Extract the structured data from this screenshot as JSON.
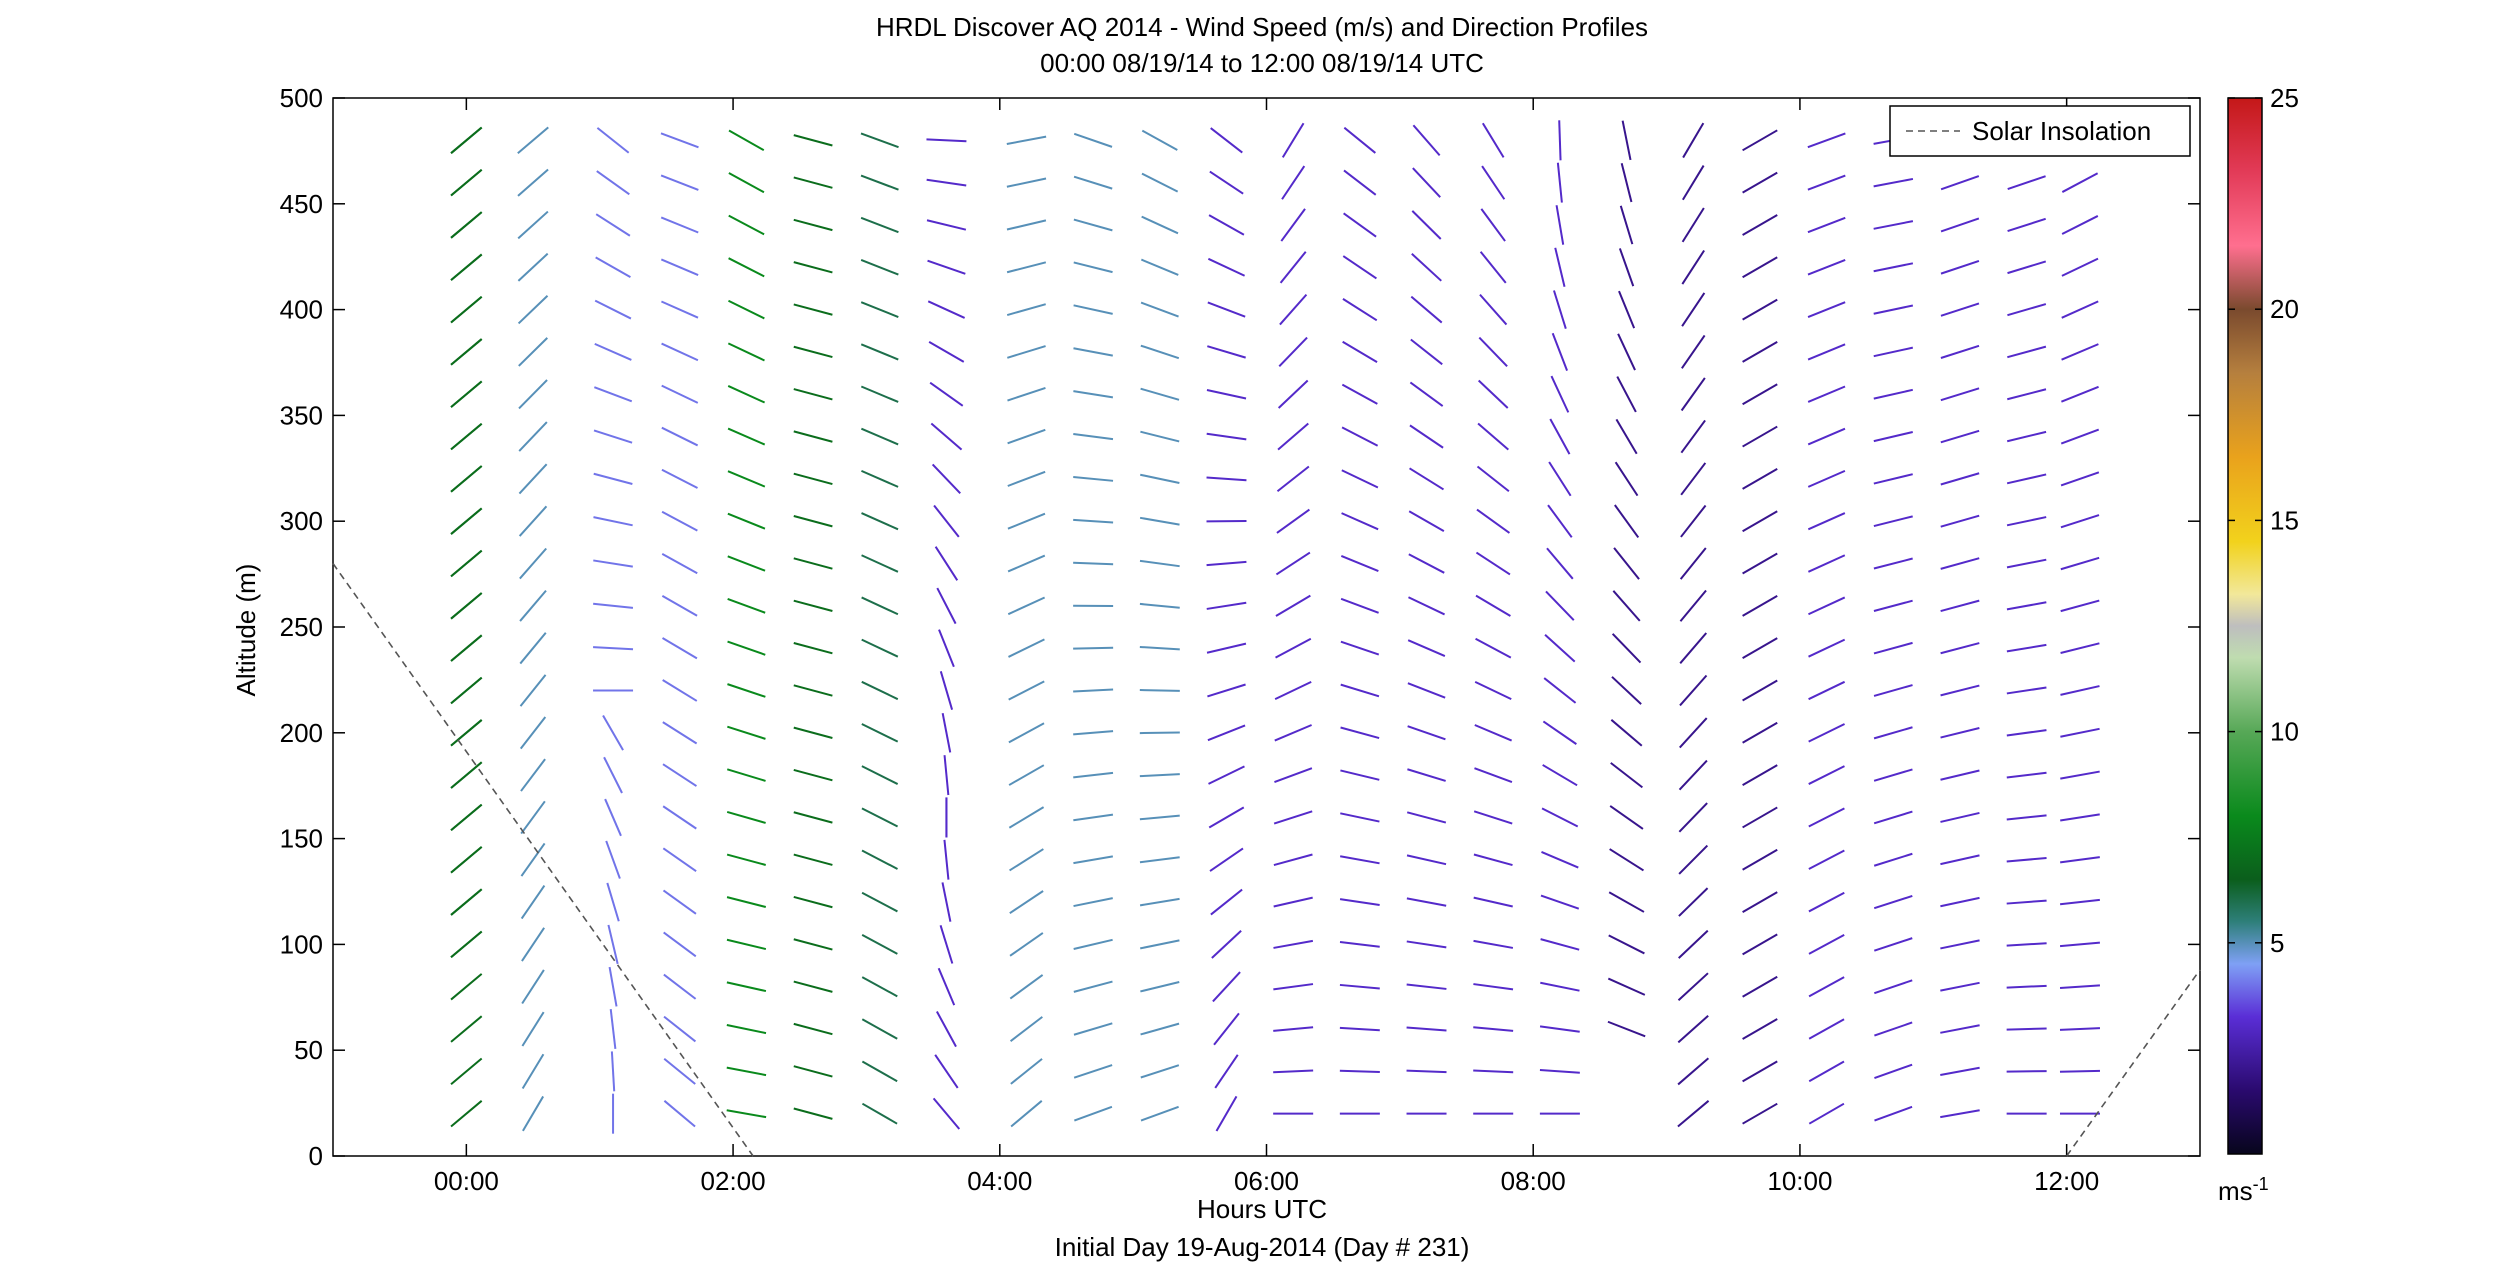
{
  "chart_data": {
    "type": "vector-field",
    "title": "HRDL Discover AQ 2014 - Wind Speed (m/s) and Direction Profiles",
    "subtitle": "00:00 08/19/14 to 12:00 08/19/14  UTC",
    "xlabel": "Hours UTC",
    "xlabel2": "Initial Day 19-Aug-2014 (Day # 231)",
    "ylabel": "Altitude (m)",
    "xlim": [
      -1.0,
      13.0
    ],
    "ylim": [
      0,
      500
    ],
    "xticks": [
      0,
      2,
      4,
      6,
      8,
      10,
      12
    ],
    "xtick_labels": [
      "00:00",
      "02:00",
      "04:00",
      "06:00",
      "08:00",
      "10:00",
      "12:00"
    ],
    "yticks": [
      0,
      50,
      100,
      150,
      200,
      250,
      300,
      350,
      400,
      450,
      500
    ],
    "ytick_labels": [
      "0",
      "50",
      "100",
      "150",
      "200",
      "250",
      "300",
      "350",
      "400",
      "450",
      "500"
    ],
    "legend": {
      "position": "top-right",
      "entries": [
        {
          "label": "Solar Insolation",
          "style": "dashed",
          "color": "#555555"
        }
      ]
    },
    "colorbar": {
      "range": [
        0,
        25
      ],
      "ticks": [
        5,
        10,
        15,
        20,
        25
      ],
      "tick_labels": [
        "5",
        "10",
        "15",
        "20",
        "25"
      ],
      "unit_label": "ms",
      "unit_exponent": "-1"
    },
    "solar_insolation": [
      {
        "x": [
          -1.0,
          2.15
        ],
        "y": [
          280,
          0
        ]
      },
      {
        "x": [
          12.0,
          13.0
        ],
        "y": [
          0,
          88
        ]
      }
    ],
    "columns": [
      {
        "x": 0.0,
        "segments": [
          [
            [
              10,
              40
            ],
            [
              490,
              40
            ]
          ],
          [
            [
              100,
              40
            ],
            [
              490,
              40
            ]
          ]
        ],
        "speed": 7
      },
      {
        "x": 0.5,
        "segments": [
          [
            [
              10,
              60
            ],
            [
              490,
              40
            ]
          ]
        ],
        "speed": 5
      },
      {
        "x": 1.1,
        "segments": [
          [
            [
              20,
              -90
            ],
            [
              200,
              -60
            ]
          ],
          [
            [
              220,
              0
            ],
            [
              490,
              -40
            ]
          ]
        ],
        "speed": 4
      },
      {
        "x": 1.6,
        "segments": [
          [
            [
              20,
              -40
            ],
            [
              490,
              -20
            ]
          ]
        ],
        "speed": 4
      },
      {
        "x": 2.1,
        "segments": [
          [
            [
              20,
              -10
            ],
            [
              490,
              -30
            ]
          ]
        ],
        "speed": 8
      },
      {
        "x": 2.6,
        "segments": [
          [
            [
              20,
              -15
            ],
            [
              490,
              -15
            ]
          ]
        ],
        "speed": 7
      },
      {
        "x": 3.1,
        "segments": [
          [
            [
              20,
              -30
            ],
            [
              490,
              -20
            ]
          ]
        ],
        "speed": 6
      },
      {
        "x": 3.6,
        "segments": [
          [
            [
              20,
              -50
            ],
            [
              160,
              -90
            ],
            [
              490,
              0
            ]
          ]
        ],
        "speed": 3
      },
      {
        "x": 4.2,
        "segments": [
          [
            [
              20,
              40
            ],
            [
              490,
              10
            ]
          ]
        ],
        "speed": 5
      },
      {
        "x": 4.7,
        "segments": [
          [
            [
              20,
              20
            ],
            [
              490,
              -20
            ]
          ]
        ],
        "speed": 5
      },
      {
        "x": 5.2,
        "segments": [
          [
            [
              20,
              20
            ],
            [
              490,
              -30
            ]
          ]
        ],
        "speed": 5
      },
      {
        "x": 5.7,
        "segments": [
          [
            [
              20,
              60
            ],
            [
              490,
              -40
            ]
          ]
        ],
        "speed": 3
      },
      {
        "x": 6.2,
        "segments": [
          [
            [
              20,
              0
            ],
            [
              490,
              60
            ]
          ]
        ],
        "speed": 3
      },
      {
        "x": 6.7,
        "segments": [
          [
            [
              20,
              0
            ],
            [
              490,
              -40
            ]
          ]
        ],
        "speed": 3
      },
      {
        "x": 7.2,
        "segments": [
          [
            [
              20,
              0
            ],
            [
              490,
              -50
            ]
          ]
        ],
        "speed": 3
      },
      {
        "x": 7.7,
        "segments": [
          [
            [
              20,
              0
            ],
            [
              490,
              -60
            ]
          ]
        ],
        "speed": 3
      },
      {
        "x": 8.2,
        "segments": [
          [
            [
              20,
              0
            ],
            [
              490,
              -90
            ]
          ]
        ],
        "speed": 3
      },
      {
        "x": 8.7,
        "segments": [
          [
            [
              50,
              -20
            ],
            [
              490,
              -80
            ]
          ]
        ],
        "speed": 2
      },
      {
        "x": 9.2,
        "segments": [
          [
            [
              20,
              40
            ],
            [
              490,
              60
            ]
          ]
        ],
        "speed": 2
      },
      {
        "x": 9.7,
        "segments": [
          [
            [
              20,
              30
            ],
            [
              490,
              30
            ]
          ]
        ],
        "speed": 2
      },
      {
        "x": 10.2,
        "segments": [
          [
            [
              20,
              30
            ],
            [
              490,
              20
            ]
          ]
        ],
        "speed": 3
      },
      {
        "x": 10.7,
        "segments": [
          [
            [
              20,
              20
            ],
            [
              490,
              10
            ]
          ]
        ],
        "speed": 3
      },
      {
        "x": 11.2,
        "segments": [
          [
            [
              20,
              10
            ],
            [
              490,
              20
            ]
          ]
        ],
        "speed": 3
      },
      {
        "x": 11.7,
        "segments": [
          [
            [
              20,
              0
            ],
            [
              490,
              20
            ]
          ]
        ],
        "speed": 3
      },
      {
        "x": 12.1,
        "segments": [
          [
            [
              20,
              0
            ],
            [
              490,
              30
            ]
          ]
        ],
        "speed": 3
      }
    ]
  }
}
